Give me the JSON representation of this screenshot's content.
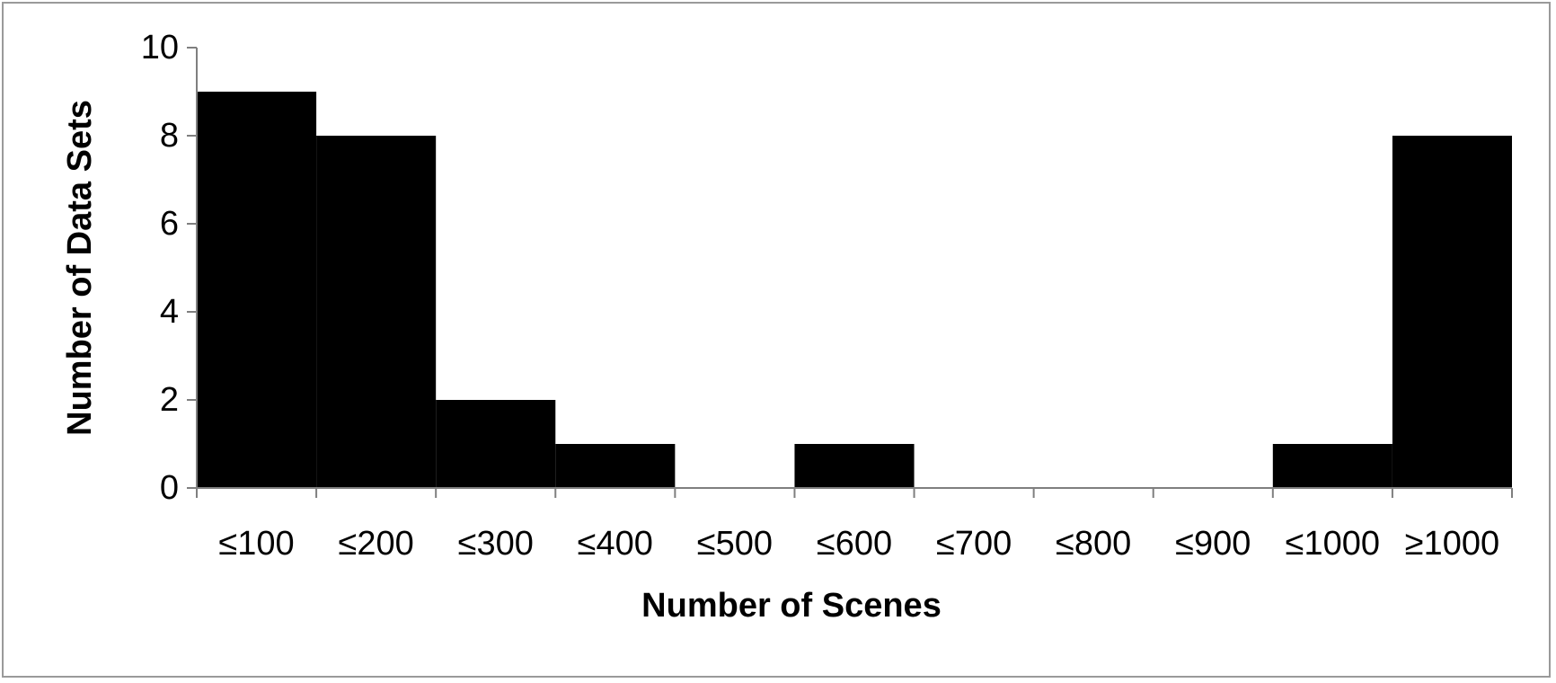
{
  "chart_data": {
    "type": "bar",
    "title": "",
    "xlabel": "Number of Scenes",
    "ylabel": "Number of Data Sets",
    "categories": [
      "≤100",
      "≤200",
      "≤300",
      "≤400",
      "≤500",
      "≤600",
      "≤700",
      "≤800",
      "≤900",
      "≤1000",
      "≥1000"
    ],
    "values": [
      9,
      8,
      2,
      1,
      0,
      1,
      0,
      0,
      0,
      1,
      8
    ],
    "ylim": [
      0,
      10
    ],
    "yticks": [
      0,
      2,
      4,
      6,
      8,
      10
    ],
    "grid": false,
    "legend": "none",
    "colors": {
      "bar": "#000000",
      "axis": "#7f7f7f",
      "border": "#9a9a9a"
    }
  }
}
